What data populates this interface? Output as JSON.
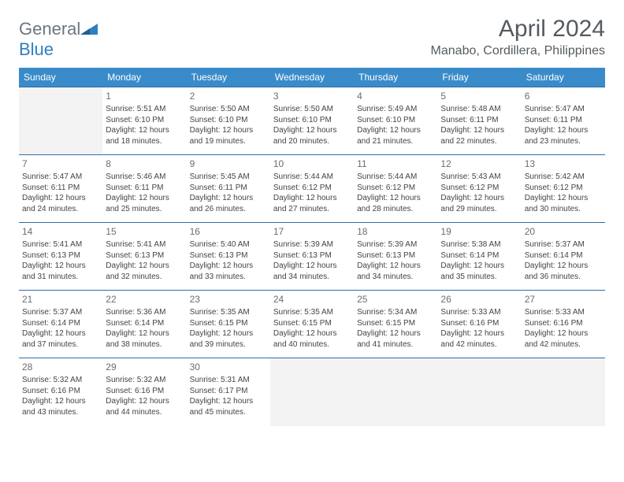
{
  "brand": {
    "name_left": "General",
    "name_right": "Blue"
  },
  "header": {
    "title": "April 2024",
    "location": "Manabo, Cordillera, Philippines"
  },
  "colors": {
    "header_bg": "#3a8bca",
    "header_text": "#ffffff",
    "row_border": "#2f6ea5",
    "empty_bg": "#f3f3f3",
    "body_text": "#444444",
    "title_text": "#555b60",
    "logo_gray": "#6c7680",
    "logo_blue": "#2f7fbf"
  },
  "days": [
    "Sunday",
    "Monday",
    "Tuesday",
    "Wednesday",
    "Thursday",
    "Friday",
    "Saturday"
  ],
  "weeks": [
    [
      null,
      {
        "d": "1",
        "sr": "Sunrise: 5:51 AM",
        "ss": "Sunset: 6:10 PM",
        "dl1": "Daylight: 12 hours",
        "dl2": "and 18 minutes."
      },
      {
        "d": "2",
        "sr": "Sunrise: 5:50 AM",
        "ss": "Sunset: 6:10 PM",
        "dl1": "Daylight: 12 hours",
        "dl2": "and 19 minutes."
      },
      {
        "d": "3",
        "sr": "Sunrise: 5:50 AM",
        "ss": "Sunset: 6:10 PM",
        "dl1": "Daylight: 12 hours",
        "dl2": "and 20 minutes."
      },
      {
        "d": "4",
        "sr": "Sunrise: 5:49 AM",
        "ss": "Sunset: 6:10 PM",
        "dl1": "Daylight: 12 hours",
        "dl2": "and 21 minutes."
      },
      {
        "d": "5",
        "sr": "Sunrise: 5:48 AM",
        "ss": "Sunset: 6:11 PM",
        "dl1": "Daylight: 12 hours",
        "dl2": "and 22 minutes."
      },
      {
        "d": "6",
        "sr": "Sunrise: 5:47 AM",
        "ss": "Sunset: 6:11 PM",
        "dl1": "Daylight: 12 hours",
        "dl2": "and 23 minutes."
      }
    ],
    [
      {
        "d": "7",
        "sr": "Sunrise: 5:47 AM",
        "ss": "Sunset: 6:11 PM",
        "dl1": "Daylight: 12 hours",
        "dl2": "and 24 minutes."
      },
      {
        "d": "8",
        "sr": "Sunrise: 5:46 AM",
        "ss": "Sunset: 6:11 PM",
        "dl1": "Daylight: 12 hours",
        "dl2": "and 25 minutes."
      },
      {
        "d": "9",
        "sr": "Sunrise: 5:45 AM",
        "ss": "Sunset: 6:11 PM",
        "dl1": "Daylight: 12 hours",
        "dl2": "and 26 minutes."
      },
      {
        "d": "10",
        "sr": "Sunrise: 5:44 AM",
        "ss": "Sunset: 6:12 PM",
        "dl1": "Daylight: 12 hours",
        "dl2": "and 27 minutes."
      },
      {
        "d": "11",
        "sr": "Sunrise: 5:44 AM",
        "ss": "Sunset: 6:12 PM",
        "dl1": "Daylight: 12 hours",
        "dl2": "and 28 minutes."
      },
      {
        "d": "12",
        "sr": "Sunrise: 5:43 AM",
        "ss": "Sunset: 6:12 PM",
        "dl1": "Daylight: 12 hours",
        "dl2": "and 29 minutes."
      },
      {
        "d": "13",
        "sr": "Sunrise: 5:42 AM",
        "ss": "Sunset: 6:12 PM",
        "dl1": "Daylight: 12 hours",
        "dl2": "and 30 minutes."
      }
    ],
    [
      {
        "d": "14",
        "sr": "Sunrise: 5:41 AM",
        "ss": "Sunset: 6:13 PM",
        "dl1": "Daylight: 12 hours",
        "dl2": "and 31 minutes."
      },
      {
        "d": "15",
        "sr": "Sunrise: 5:41 AM",
        "ss": "Sunset: 6:13 PM",
        "dl1": "Daylight: 12 hours",
        "dl2": "and 32 minutes."
      },
      {
        "d": "16",
        "sr": "Sunrise: 5:40 AM",
        "ss": "Sunset: 6:13 PM",
        "dl1": "Daylight: 12 hours",
        "dl2": "and 33 minutes."
      },
      {
        "d": "17",
        "sr": "Sunrise: 5:39 AM",
        "ss": "Sunset: 6:13 PM",
        "dl1": "Daylight: 12 hours",
        "dl2": "and 34 minutes."
      },
      {
        "d": "18",
        "sr": "Sunrise: 5:39 AM",
        "ss": "Sunset: 6:13 PM",
        "dl1": "Daylight: 12 hours",
        "dl2": "and 34 minutes."
      },
      {
        "d": "19",
        "sr": "Sunrise: 5:38 AM",
        "ss": "Sunset: 6:14 PM",
        "dl1": "Daylight: 12 hours",
        "dl2": "and 35 minutes."
      },
      {
        "d": "20",
        "sr": "Sunrise: 5:37 AM",
        "ss": "Sunset: 6:14 PM",
        "dl1": "Daylight: 12 hours",
        "dl2": "and 36 minutes."
      }
    ],
    [
      {
        "d": "21",
        "sr": "Sunrise: 5:37 AM",
        "ss": "Sunset: 6:14 PM",
        "dl1": "Daylight: 12 hours",
        "dl2": "and 37 minutes."
      },
      {
        "d": "22",
        "sr": "Sunrise: 5:36 AM",
        "ss": "Sunset: 6:14 PM",
        "dl1": "Daylight: 12 hours",
        "dl2": "and 38 minutes."
      },
      {
        "d": "23",
        "sr": "Sunrise: 5:35 AM",
        "ss": "Sunset: 6:15 PM",
        "dl1": "Daylight: 12 hours",
        "dl2": "and 39 minutes."
      },
      {
        "d": "24",
        "sr": "Sunrise: 5:35 AM",
        "ss": "Sunset: 6:15 PM",
        "dl1": "Daylight: 12 hours",
        "dl2": "and 40 minutes."
      },
      {
        "d": "25",
        "sr": "Sunrise: 5:34 AM",
        "ss": "Sunset: 6:15 PM",
        "dl1": "Daylight: 12 hours",
        "dl2": "and 41 minutes."
      },
      {
        "d": "26",
        "sr": "Sunrise: 5:33 AM",
        "ss": "Sunset: 6:16 PM",
        "dl1": "Daylight: 12 hours",
        "dl2": "and 42 minutes."
      },
      {
        "d": "27",
        "sr": "Sunrise: 5:33 AM",
        "ss": "Sunset: 6:16 PM",
        "dl1": "Daylight: 12 hours",
        "dl2": "and 42 minutes."
      }
    ],
    [
      {
        "d": "28",
        "sr": "Sunrise: 5:32 AM",
        "ss": "Sunset: 6:16 PM",
        "dl1": "Daylight: 12 hours",
        "dl2": "and 43 minutes."
      },
      {
        "d": "29",
        "sr": "Sunrise: 5:32 AM",
        "ss": "Sunset: 6:16 PM",
        "dl1": "Daylight: 12 hours",
        "dl2": "and 44 minutes."
      },
      {
        "d": "30",
        "sr": "Sunrise: 5:31 AM",
        "ss": "Sunset: 6:17 PM",
        "dl1": "Daylight: 12 hours",
        "dl2": "and 45 minutes."
      },
      null,
      null,
      null,
      null
    ]
  ]
}
